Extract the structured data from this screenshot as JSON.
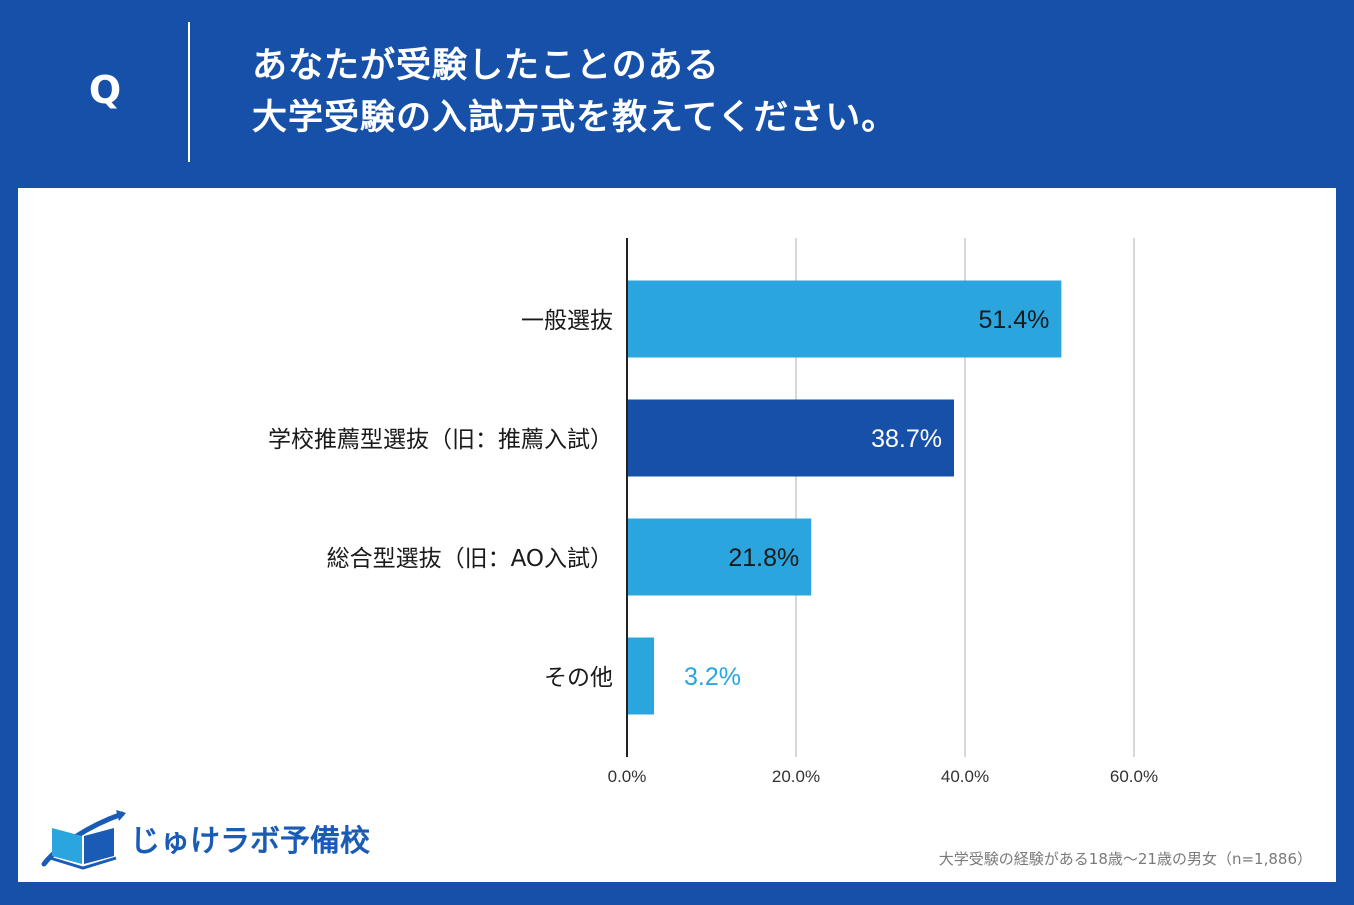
{
  "header": {
    "q_mark": "Q",
    "title_line1": "あなたが受験したことのある",
    "title_line2": "大学受験の入試方式を教えてください。"
  },
  "chart_data": {
    "type": "bar",
    "orientation": "horizontal",
    "categories": [
      "一般選抜",
      "学校推薦型選抜（旧：推薦入試）",
      "総合型選抜（旧：AO入試）",
      "その他"
    ],
    "values": [
      51.4,
      38.7,
      21.8,
      3.2
    ],
    "value_labels": [
      "51.4%",
      "38.7%",
      "21.8%",
      "3.2%"
    ],
    "bar_colors": [
      "#2aa5de",
      "#1650a8",
      "#2aa5de",
      "#2aa5de"
    ],
    "label_colors": [
      "#1a1a1a",
      "#ffffff",
      "#1a1a1a",
      "#2aa5de"
    ],
    "xlim": [
      0,
      60
    ],
    "x_ticks": [
      "0.0%",
      "20.0%",
      "40.0%",
      "60.0%"
    ],
    "x_tick_values": [
      0,
      20,
      40,
      60
    ],
    "grid": true,
    "gridline_color": "#cccccc"
  },
  "logo": {
    "text": "じゅけラボ予備校",
    "color": "#1a5bb5"
  },
  "source_note": "大学受験の経験がある18歳～21歳の男女（n=1,886）"
}
